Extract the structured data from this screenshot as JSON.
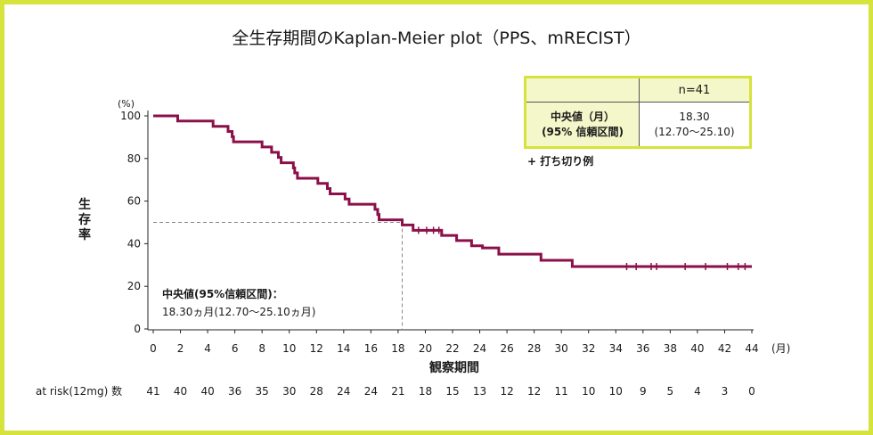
{
  "title": "全生存期間のKaplan-Meier plot（PPS、mRECIST）",
  "stats_table": {
    "header_right": "n=41",
    "row_label_line1": "中央値（月）",
    "row_label_line2": "(95% 信頼区間)",
    "row_value_line1": "18.30",
    "row_value_line2": "(12.70〜25.10)"
  },
  "censor_legend": "+ 打ち切り例",
  "median_annotation": {
    "line1": "中央値(95%信頼区間)：",
    "line2": "18.30ヵ月(12.70〜25.10ヵ月)"
  },
  "colors": {
    "curve": "#8b1049",
    "border": "#d6e33c",
    "table_fill": "#f4f7c9",
    "reference_line": "#888888"
  },
  "risk_table": {
    "label": "at risk(12mg) 数",
    "values": [
      "41",
      "40",
      "40",
      "36",
      "35",
      "30",
      "28",
      "24",
      "24",
      "21",
      "18",
      "15",
      "13",
      "12",
      "12",
      "11",
      "10",
      "10",
      "9",
      "5",
      "4",
      "3",
      "0"
    ]
  },
  "chart_data": {
    "type": "line",
    "subtype": "kaplan-meier step",
    "xlabel": "観察期間",
    "x_unit": "(月)",
    "ylabel": "生存率",
    "y_unit": "(%)",
    "xlim": [
      0,
      44
    ],
    "ylim": [
      0,
      100
    ],
    "x_ticks": [
      0,
      2,
      4,
      6,
      8,
      10,
      12,
      14,
      16,
      18,
      20,
      22,
      24,
      26,
      28,
      30,
      32,
      34,
      36,
      38,
      40,
      42,
      44
    ],
    "y_ticks": [
      0,
      20,
      40,
      60,
      80,
      100
    ],
    "grid": false,
    "median_survival": 18.3,
    "median_reference_y": 50,
    "series": [
      {
        "steps": [
          [
            0,
            100
          ],
          [
            1.8,
            97.6
          ],
          [
            4.4,
            95.1
          ],
          [
            5.5,
            92.7
          ],
          [
            5.8,
            90.2
          ],
          [
            5.9,
            87.8
          ],
          [
            8.0,
            85.4
          ],
          [
            8.7,
            82.9
          ],
          [
            9.2,
            80.5
          ],
          [
            9.4,
            78.0
          ],
          [
            10.3,
            75.6
          ],
          [
            10.4,
            73.2
          ],
          [
            10.6,
            70.7
          ],
          [
            12.1,
            68.3
          ],
          [
            12.8,
            65.9
          ],
          [
            13.0,
            63.4
          ],
          [
            14.1,
            61.0
          ],
          [
            14.4,
            58.5
          ],
          [
            16.3,
            56.1
          ],
          [
            16.5,
            53.7
          ],
          [
            16.6,
            51.2
          ],
          [
            18.3,
            48.8
          ],
          [
            19.1,
            46.3
          ],
          [
            21.2,
            43.9
          ],
          [
            22.3,
            41.5
          ],
          [
            23.4,
            39.0
          ],
          [
            24.2,
            38.0
          ],
          [
            25.4,
            35.1
          ],
          [
            28.5,
            32.2
          ],
          [
            30.8,
            29.3
          ],
          [
            44,
            29.3
          ]
        ],
        "censored": [
          [
            19.5,
            46.3
          ],
          [
            20.1,
            46.3
          ],
          [
            20.6,
            46.3
          ],
          [
            21.0,
            46.3
          ],
          [
            34.8,
            29.3
          ],
          [
            35.5,
            29.3
          ],
          [
            36.6,
            29.3
          ],
          [
            37.0,
            29.3
          ],
          [
            39.1,
            29.3
          ],
          [
            40.6,
            29.3
          ],
          [
            42.2,
            29.3
          ],
          [
            43.0,
            29.3
          ],
          [
            43.5,
            29.3
          ]
        ]
      }
    ]
  }
}
